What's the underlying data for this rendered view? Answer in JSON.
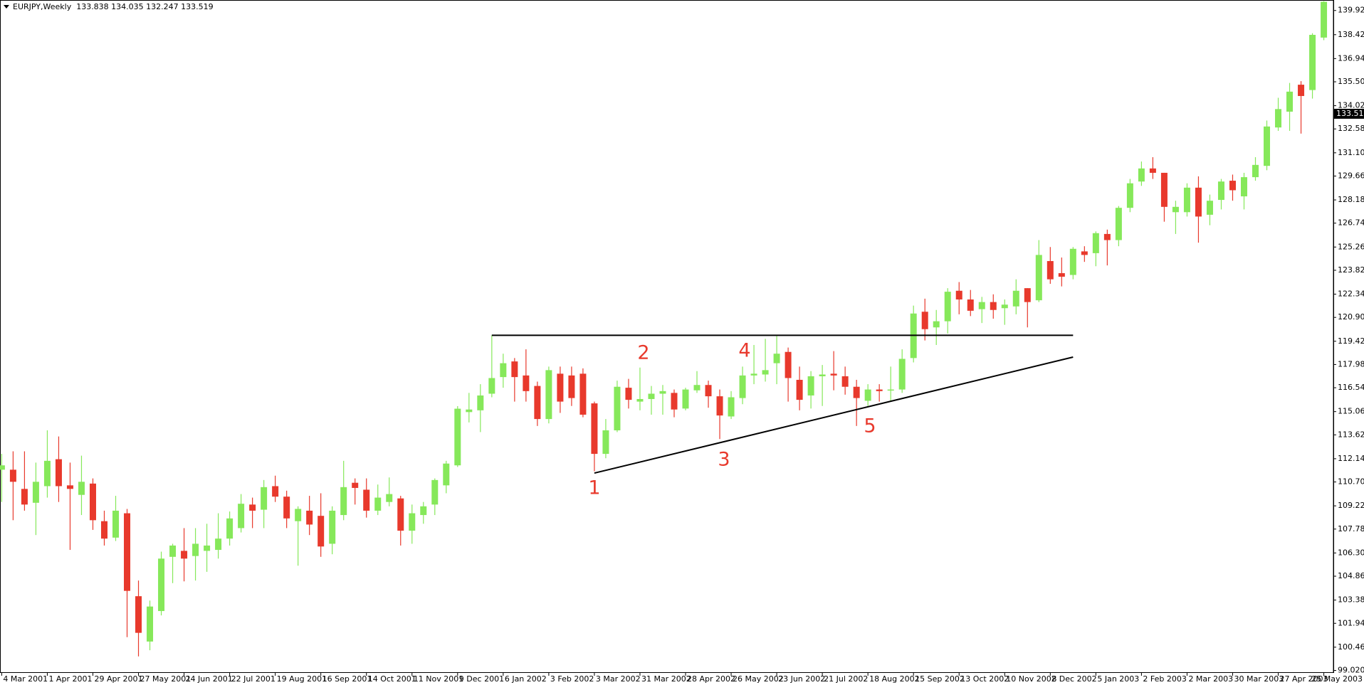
{
  "chart_data": {
    "type": "candlestick",
    "header": "EURJPY,Weekly  133.838 134.035 132.247 133.519",
    "up_color": "#86e85a",
    "down_color": "#e8392c",
    "grid": false,
    "categories": [
      "4 Mar 2001",
      null,
      null,
      null,
      "1 Apr 2001",
      null,
      null,
      null,
      "29 Apr 2001",
      null,
      null,
      null,
      "27 May 2001",
      null,
      null,
      null,
      "24 Jun 2001",
      null,
      null,
      null,
      "22 Jul 2001",
      null,
      null,
      null,
      "19 Aug 2001",
      null,
      null,
      null,
      "16 Sep 2001",
      null,
      null,
      null,
      "14 Oct 2001",
      null,
      null,
      null,
      "11 Nov 2001",
      null,
      null,
      null,
      "9 Dec 2001",
      null,
      null,
      null,
      "6 Jan 2002",
      null,
      null,
      null,
      "3 Feb 2002",
      null,
      null,
      null,
      "3 Mar 2002",
      null,
      null,
      null,
      "31 Mar 2002",
      null,
      null,
      null,
      "28 Apr 2002",
      null,
      null,
      null,
      "26 May 2002",
      null,
      null,
      null,
      "23 Jun 2002",
      null,
      null,
      null,
      "21 Jul 2002",
      null,
      null,
      null,
      "18 Aug 2002",
      null,
      null,
      null,
      "15 Sep 2002",
      null,
      null,
      null,
      "13 Oct 2002",
      null,
      null,
      null,
      "10 Nov 2002",
      null,
      null,
      null,
      "8 Dec 2002",
      null,
      null,
      null,
      "5 Jan 2003",
      null,
      null,
      null,
      "2 Feb 2003",
      null,
      null,
      null,
      "2 Mar 2003",
      null,
      null,
      null,
      "30 Mar 2003",
      null,
      null,
      null,
      "27 Apr 2003",
      null,
      null,
      null,
      "25 May 2003"
    ],
    "open": [
      111.46,
      111.46,
      110.27,
      109.41,
      110.44,
      112.11,
      110.49,
      109.9,
      110.6,
      108.27,
      107.25,
      108.76,
      103.62,
      100.81,
      102.7,
      106.06,
      106.43,
      106.11,
      106.43,
      106.49,
      107.19,
      107.84,
      109.3,
      108.98,
      110.44,
      109.79,
      108.27,
      108.92,
      108.6,
      106.87,
      108.65,
      110.65,
      110.22,
      108.92,
      109.46,
      109.68,
      107.68,
      108.65,
      109.3,
      110.49,
      111.73,
      115.03,
      115.14,
      116.17,
      117.2,
      118.17,
      117.3,
      116.65,
      114.6,
      117.41,
      117.3,
      117.41,
      115.57,
      112.44,
      113.9,
      116.54,
      115.68,
      115.84,
      116.17,
      116.22,
      115.25,
      116.38,
      116.71,
      116.01,
      114.76,
      115.9,
      117.3,
      117.36,
      118.06,
      118.76,
      117.03,
      116.06,
      117.25,
      117.41,
      117.25,
      116.6,
      115.73,
      116.43,
      116.38,
      116.43,
      118.38,
      121.25,
      120.28,
      120.66,
      122.55,
      122.01,
      121.41,
      121.85,
      121.47,
      121.58,
      122.71,
      121.96,
      124.39,
      123.64,
      123.53,
      124.99,
      124.88,
      126.07,
      125.69,
      127.69,
      129.32,
      130.13,
      129.86,
      127.42,
      127.42,
      128.94,
      127.26,
      128.18,
      129.37,
      128.4,
      129.59,
      130.29,
      132.67,
      133.65,
      135.32,
      134.99,
      138.24
    ],
    "high": [
      112.44,
      112.6,
      112.6,
      111.9,
      113.9,
      113.52,
      111.9,
      112.33,
      110.92,
      108.92,
      109.84,
      109.03,
      104.59,
      103.35,
      106.38,
      106.87,
      107.84,
      107.84,
      108.11,
      108.76,
      108.87,
      109.95,
      109.73,
      110.82,
      111.09,
      110.16,
      109.19,
      109.84,
      110.0,
      109.19,
      112.01,
      110.92,
      110.92,
      110.54,
      110.98,
      109.84,
      109.3,
      109.46,
      110.92,
      112.01,
      115.4,
      116.22,
      116.76,
      119.79,
      118.65,
      118.38,
      118.92,
      116.92,
      117.85,
      117.85,
      117.85,
      117.74,
      115.68,
      114.6,
      116.98,
      117.09,
      117.79,
      116.65,
      116.71,
      116.43,
      116.54,
      117.57,
      116.98,
      116.43,
      116.33,
      117.85,
      119.19,
      119.57,
      119.74,
      119.03,
      117.85,
      117.57,
      117.95,
      118.81,
      117.85,
      117.03,
      116.76,
      116.76,
      117.85,
      118.92,
      121.63,
      122.06,
      121.36,
      122.71,
      123.09,
      122.6,
      122.17,
      122.33,
      122.01,
      123.26,
      122.71,
      125.69,
      125.26,
      124.61,
      125.26,
      125.31,
      126.23,
      126.34,
      127.8,
      129.48,
      130.56,
      130.83,
      129.86,
      128.13,
      129.21,
      129.64,
      128.51,
      129.48,
      129.75,
      129.86,
      130.83,
      133.1,
      134.51,
      135.43,
      135.54,
      138.51,
      140.5
    ],
    "low": [
      109.46,
      108.33,
      108.92,
      107.41,
      109.73,
      109.46,
      106.49,
      108.65,
      107.73,
      106.76,
      107.04,
      101.08,
      99.89,
      100.27,
      102.43,
      104.43,
      104.54,
      104.59,
      105.13,
      105.95,
      106.76,
      107.57,
      107.84,
      107.84,
      109.46,
      107.84,
      105.51,
      107.41,
      106.06,
      106.22,
      108.33,
      109.3,
      108.49,
      108.65,
      109.19,
      106.76,
      106.87,
      108.11,
      108.65,
      110.0,
      111.63,
      114.39,
      113.79,
      115.95,
      116.54,
      115.68,
      115.68,
      114.17,
      114.33,
      114.98,
      115.41,
      114.71,
      111.36,
      112.17,
      113.79,
      115.25,
      115.14,
      114.87,
      114.87,
      114.71,
      115.14,
      116.22,
      115.3,
      113.36,
      114.6,
      115.52,
      116.76,
      116.92,
      116.76,
      115.68,
      115.14,
      115.25,
      115.41,
      116.38,
      116.11,
      114.17,
      115.41,
      115.68,
      115.68,
      116.22,
      118.11,
      119.47,
      119.19,
      119.9,
      121.09,
      120.98,
      120.55,
      120.82,
      120.44,
      121.09,
      120.28,
      121.85,
      122.98,
      122.82,
      123.26,
      124.34,
      124.07,
      124.12,
      125.31,
      127.42,
      129.05,
      129.48,
      126.83,
      126.07,
      127.15,
      125.53,
      126.61,
      127.59,
      128.13,
      127.59,
      129.37,
      130.02,
      132.46,
      132.46,
      132.29,
      134.46,
      138.08
    ],
    "close": [
      111.73,
      110.71,
      109.3,
      110.71,
      112.01,
      110.44,
      110.27,
      110.71,
      108.33,
      107.19,
      108.92,
      103.95,
      101.35,
      102.98,
      105.95,
      106.76,
      105.95,
      106.87,
      106.76,
      107.19,
      108.44,
      109.35,
      108.92,
      110.38,
      109.79,
      108.44,
      109.03,
      108.06,
      106.7,
      108.92,
      110.38,
      110.33,
      108.92,
      109.73,
      109.95,
      107.68,
      108.76,
      109.19,
      110.82,
      111.84,
      115.24,
      115.19,
      116.06,
      117.14,
      118.06,
      117.2,
      116.33,
      114.6,
      117.63,
      115.68,
      115.9,
      114.87,
      112.44,
      113.9,
      116.6,
      115.79,
      115.84,
      116.17,
      116.33,
      115.19,
      116.43,
      116.71,
      116.01,
      114.82,
      115.95,
      117.3,
      117.41,
      117.63,
      118.65,
      117.14,
      115.79,
      117.25,
      117.36,
      117.3,
      116.6,
      115.9,
      116.43,
      116.33,
      116.43,
      118.33,
      121.14,
      120.17,
      120.66,
      122.49,
      122.01,
      121.31,
      121.85,
      121.36,
      121.69,
      122.55,
      121.85,
      124.77,
      123.26,
      123.42,
      125.15,
      124.77,
      126.12,
      125.69,
      127.69,
      129.21,
      130.13,
      129.86,
      127.75,
      127.75,
      128.94,
      127.15,
      128.13,
      129.32,
      128.78,
      129.59,
      130.35,
      132.73,
      133.81,
      134.89,
      134.62,
      138.41,
      140.46
    ],
    "ylim": [
      98.91,
      140.57
    ],
    "yticks": [
      {
        "value": 139.92,
        "label": "139.920"
      },
      {
        "value": 138.42,
        "label": "138.420"
      },
      {
        "value": 136.94,
        "label": "136.940"
      },
      {
        "value": 135.5,
        "label": "135.500"
      },
      {
        "value": 134.02,
        "label": "134.020"
      },
      {
        "value": 132.58,
        "label": "132.580"
      },
      {
        "value": 131.1,
        "label": "131.100"
      },
      {
        "value": 129.66,
        "label": "129.660"
      },
      {
        "value": 128.18,
        "label": "128.180"
      },
      {
        "value": 126.74,
        "label": "126.740"
      },
      {
        "value": 125.26,
        "label": "125.260"
      },
      {
        "value": 123.82,
        "label": "123.820"
      },
      {
        "value": 122.34,
        "label": "122.340"
      },
      {
        "value": 120.9,
        "label": "120.900"
      },
      {
        "value": 119.42,
        "label": "119.420"
      },
      {
        "value": 117.98,
        "label": "117.980"
      },
      {
        "value": 116.54,
        "label": "116.540"
      },
      {
        "value": 115.06,
        "label": "115.060"
      },
      {
        "value": 113.62,
        "label": "113.620"
      },
      {
        "value": 112.14,
        "label": "112.140"
      },
      {
        "value": 110.7,
        "label": "110.700"
      },
      {
        "value": 109.22,
        "label": "109.220"
      },
      {
        "value": 107.78,
        "label": "107.780"
      },
      {
        "value": 106.3,
        "label": "106.300"
      },
      {
        "value": 104.86,
        "label": "104.860"
      },
      {
        "value": 103.38,
        "label": "103.380"
      },
      {
        "value": 101.94,
        "label": "101.940"
      },
      {
        "value": 100.46,
        "label": "100.460"
      },
      {
        "value": 99.02,
        "label": "99.020"
      }
    ],
    "last_price": 133.519,
    "lines": [
      {
        "start": 43,
        "end": 94,
        "values": [
          119.79,
          119.79
        ]
      },
      {
        "start": 52,
        "end": 94,
        "values": [
          111.25,
          118.44
        ]
      }
    ],
    "annotations": [
      "1",
      "2",
      "3",
      "4",
      "5"
    ]
  }
}
